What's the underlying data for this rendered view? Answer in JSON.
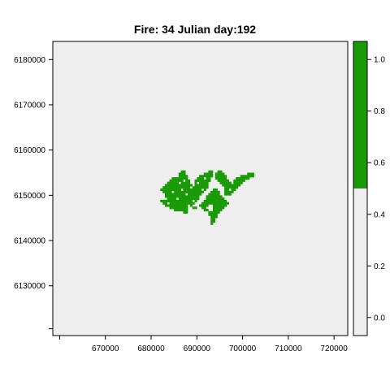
{
  "chart_data": {
    "type": "heatmap",
    "title": "Fire: 34   Julian day:192",
    "xlabel": "",
    "ylabel": "",
    "xlim": [
      658500,
      723000
    ],
    "ylim": [
      6119000,
      6184000
    ],
    "x_ticks": [
      670000,
      680000,
      690000,
      700000,
      710000,
      720000
    ],
    "x_tick_labels": [
      "670000",
      "680000",
      "690000",
      "700000",
      "710000",
      "720000"
    ],
    "y_ticks": [
      6130000,
      6140000,
      6150000,
      6160000,
      6170000,
      6180000
    ],
    "y_tick_labels": [
      "6130000",
      "6140000",
      "6150000",
      "6160000",
      "6170000",
      "6180000"
    ],
    "colorbar": {
      "range": [
        -0.07,
        1.07
      ],
      "ticks": [
        0.0,
        0.2,
        0.4,
        0.6,
        0.8,
        1.0
      ],
      "tick_labels": [
        "0.0",
        "0.2",
        "0.4",
        "0.6",
        "0.8",
        "1.0"
      ],
      "breaks": [
        {
          "from": -0.07,
          "to": 0.5,
          "value": 0,
          "color": "#eeeeee"
        },
        {
          "from": 0.5,
          "to": 1.07,
          "value": 1,
          "color": "#1a9a06"
        }
      ]
    },
    "background_color": "#eeeeee",
    "burned_color": "#1a9a06",
    "cell_size": 500,
    "burned_cells_rows": [
      {
        "y": 6155000,
        "x_ranges": [
          [
            686500,
            687500
          ],
          [
            692500,
            693500
          ],
          [
            694500,
            695500
          ]
        ]
      },
      {
        "y": 6154500,
        "x_ranges": [
          [
            686000,
            687500
          ],
          [
            691500,
            693500
          ],
          [
            694000,
            696000
          ],
          [
            701000,
            702500
          ]
        ]
      },
      {
        "y": 6154000,
        "x_ranges": [
          [
            686000,
            688000
          ],
          [
            690500,
            693500
          ],
          [
            694000,
            696500
          ],
          [
            699500,
            702500
          ]
        ]
      },
      {
        "y": 6153500,
        "x_ranges": [
          [
            684500,
            688000
          ],
          [
            690000,
            693000
          ],
          [
            694000,
            696500
          ],
          [
            698500,
            701500
          ]
        ]
      },
      {
        "y": 6153000,
        "x_ranges": [
          [
            684000,
            688500
          ],
          [
            689500,
            693000
          ],
          [
            694500,
            697000
          ],
          [
            698000,
            700500
          ]
        ]
      },
      {
        "y": 6152500,
        "x_ranges": [
          [
            683500,
            688500
          ],
          [
            689500,
            692500
          ],
          [
            695000,
            697500
          ],
          [
            698000,
            700000
          ]
        ]
      },
      {
        "y": 6152000,
        "x_ranges": [
          [
            683000,
            689000
          ],
          [
            689500,
            692500
          ],
          [
            695500,
            699500
          ]
        ]
      },
      {
        "y": 6151500,
        "x_ranges": [
          [
            682500,
            692500
          ],
          [
            696000,
            699000
          ]
        ]
      },
      {
        "y": 6151000,
        "x_ranges": [
          [
            682000,
            692000
          ],
          [
            693500,
            694500
          ],
          [
            696000,
            698500
          ]
        ]
      },
      {
        "y": 6150500,
        "x_ranges": [
          [
            682500,
            691500
          ],
          [
            693000,
            695000
          ],
          [
            696000,
            698000
          ]
        ]
      },
      {
        "y": 6150000,
        "x_ranges": [
          [
            683000,
            691000
          ],
          [
            692500,
            695000
          ],
          [
            696000,
            697500
          ]
        ]
      },
      {
        "y": 6149500,
        "x_ranges": [
          [
            683000,
            690500
          ],
          [
            692000,
            695500
          ]
        ]
      },
      {
        "y": 6149000,
        "x_ranges": [
          [
            683500,
            690500
          ],
          [
            692000,
            696000
          ]
        ]
      },
      {
        "y": 6148500,
        "x_ranges": [
          [
            682000,
            690000
          ],
          [
            691500,
            696500
          ]
        ]
      },
      {
        "y": 6148000,
        "x_ranges": [
          [
            682500,
            689500
          ],
          [
            691000,
            697000
          ]
        ]
      },
      {
        "y": 6147500,
        "x_ranges": [
          [
            683000,
            689000
          ],
          [
            690500,
            692500
          ],
          [
            693500,
            696500
          ]
        ]
      },
      {
        "y": 6147000,
        "x_ranges": [
          [
            684000,
            688000
          ],
          [
            689000,
            690000
          ],
          [
            691000,
            692000
          ],
          [
            693500,
            696000
          ]
        ]
      },
      {
        "y": 6146500,
        "x_ranges": [
          [
            685000,
            688000
          ],
          [
            691500,
            692500
          ],
          [
            693500,
            695500
          ]
        ]
      },
      {
        "y": 6146000,
        "x_ranges": [
          [
            687000,
            688000
          ],
          [
            692500,
            695000
          ]
        ]
      },
      {
        "y": 6145500,
        "x_ranges": [
          [
            692500,
            694500
          ]
        ]
      },
      {
        "y": 6145000,
        "x_ranges": [
          [
            693000,
            694500
          ]
        ]
      },
      {
        "y": 6144500,
        "x_ranges": [
          [
            693000,
            694000
          ]
        ]
      },
      {
        "y": 6144000,
        "x_ranges": [
          [
            693000,
            694000
          ]
        ]
      },
      {
        "y": 6143500,
        "x_ranges": [
          [
            693000,
            693500
          ]
        ]
      }
    ],
    "gap_cells": [
      [
        687000,
        6153000
      ],
      [
        688500,
        6151500
      ],
      [
        687500,
        6150000
      ],
      [
        690000,
        6152500
      ],
      [
        685500,
        6149000
      ],
      [
        689000,
        6148500
      ],
      [
        686500,
        6151000
      ],
      [
        691500,
        6153500
      ],
      [
        684500,
        6150500
      ],
      [
        690500,
        6149500
      ],
      [
        688000,
        6147500
      ],
      [
        695500,
        6149500
      ],
      [
        697000,
        6151000
      ],
      [
        683500,
        6148000
      ],
      [
        691000,
        6151000
      ],
      [
        686000,
        6152500
      ]
    ]
  }
}
